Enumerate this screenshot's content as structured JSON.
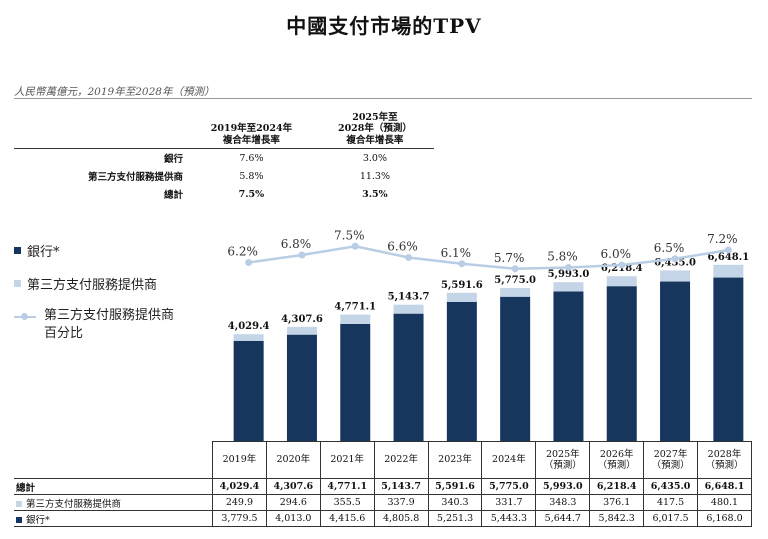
{
  "title": "中國支付市場的TPV",
  "subtitle": "人民幣萬億元，2019年至2028年（預測）",
  "cagr_table": {
    "headers": [
      "2019年至2024年\n複合年增長率",
      "2025年至\n2028年（預測）\n複合年增長率"
    ],
    "rows": [
      {
        "label": "銀行",
        "a": "7.6%",
        "b": "3.0%"
      },
      {
        "label": "第三方支付服務提供商",
        "a": "5.8%",
        "b": "11.3%"
      },
      {
        "label": "總計",
        "a": "7.5%",
        "b": "3.5%"
      }
    ]
  },
  "legend": {
    "bank": "銀行*",
    "third_party": "第三方支付服務提供商",
    "pct": "第三方支付服務提供商\n百分比"
  },
  "colors": {
    "bank": "#17365d",
    "third_party": "#c5d5e8",
    "pct_line": "#b9cde5"
  },
  "chart_data": {
    "type": "bar",
    "stacked": true,
    "categories": [
      "2019年",
      "2020年",
      "2021年",
      "2022年",
      "2023年",
      "2024年",
      "2025年\n（預測）",
      "2026年\n（預測）",
      "2027年\n（預測）",
      "2028年\n（預測）"
    ],
    "series": [
      {
        "name": "銀行*",
        "values": [
          3779.5,
          4013.0,
          4415.6,
          4805.8,
          5251.3,
          5443.3,
          5644.7,
          5842.3,
          6017.5,
          6168.0
        ]
      },
      {
        "name": "第三方支付服務提供商",
        "values": [
          249.9,
          294.6,
          355.5,
          337.9,
          340.3,
          331.7,
          348.3,
          376.1,
          417.5,
          480.1
        ]
      }
    ],
    "totals": [
      4029.4,
      4307.6,
      4771.1,
      5143.7,
      5591.6,
      5775.0,
      5993.0,
      6218.4,
      6435.0,
      6648.1
    ],
    "total_labels": [
      "4,029.4",
      "4,307.6",
      "4,771.1",
      "5,143.7",
      "5,591.6",
      "5,775.0",
      "5,993.0",
      "6,218.4",
      "6,435.0",
      "6,648.1"
    ],
    "line": {
      "name": "第三方支付服務提供商百分比",
      "values": [
        6.2,
        6.8,
        7.5,
        6.6,
        6.1,
        5.7,
        5.8,
        6.0,
        6.5,
        7.2
      ],
      "labels": [
        "6.2%",
        "6.8%",
        "7.5%",
        "6.6%",
        "6.1%",
        "5.7%",
        "5.8%",
        "6.0%",
        "6.5%",
        "7.2%"
      ]
    },
    "legend_position": "left"
  },
  "bottom_table": {
    "years": [
      "2019年",
      "2020年",
      "2021年",
      "2022年",
      "2023年",
      "2024年",
      "2025年\n（預測）",
      "2026年\n（預測）",
      "2027年\n（預測）",
      "2028年\n（預測）"
    ],
    "total_label": "總計",
    "third_label": "第三方支付服務提供商",
    "bank_label": "銀行*",
    "total": [
      "4,029.4",
      "4,307.6",
      "4,771.1",
      "5,143.7",
      "5,591.6",
      "5,775.0",
      "5,993.0",
      "6,218.4",
      "6,435.0",
      "6,648.1"
    ],
    "third": [
      "249.9",
      "294.6",
      "355.5",
      "337.9",
      "340.3",
      "331.7",
      "348.3",
      "376.1",
      "417.5",
      "480.1"
    ],
    "bank": [
      "3,779.5",
      "4,013.0",
      "4,415.6",
      "4,805.8",
      "5,251.3",
      "5,443.3",
      "5,644.7",
      "5,842.3",
      "6,017.5",
      "6,168.0"
    ]
  }
}
